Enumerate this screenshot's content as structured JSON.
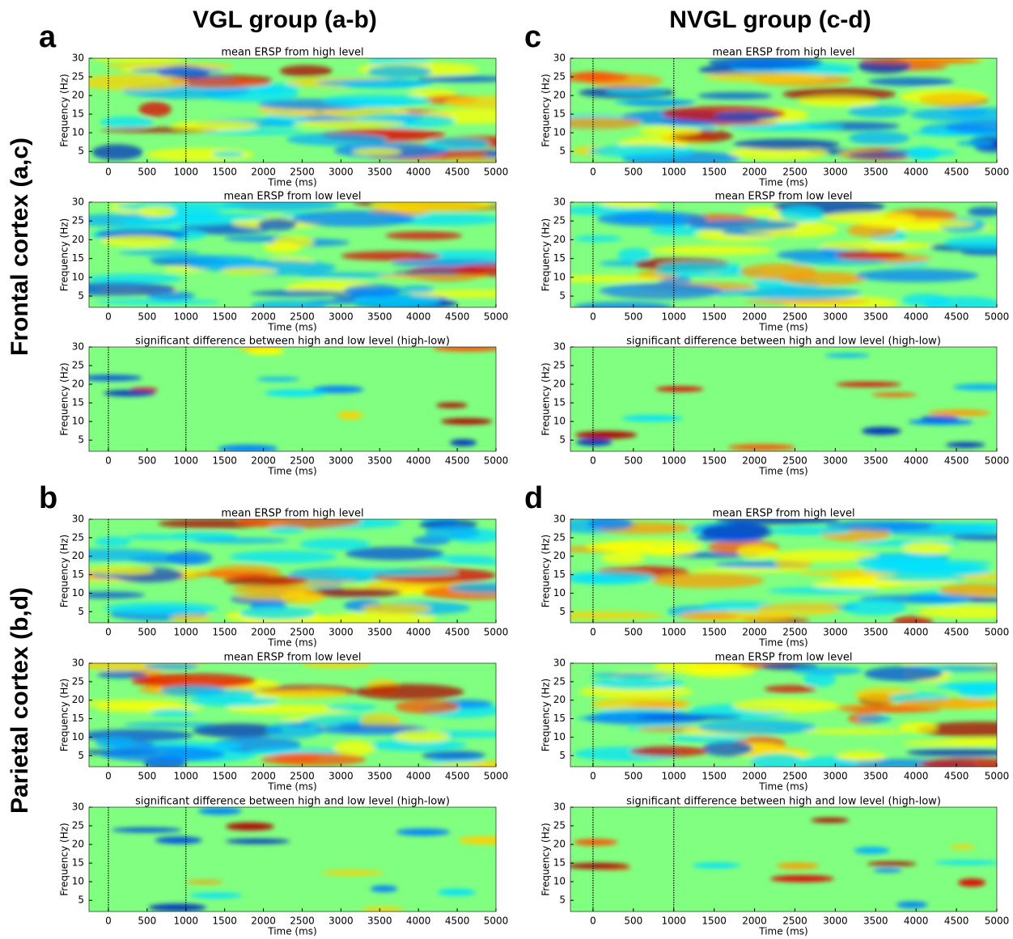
{
  "headers": {
    "left": "VGL group (a-b)",
    "right": "NVGL group (c-d)",
    "row1": "Frontal cortex (a,c)",
    "row2": "Parietal cortex (b,d)",
    "letters": [
      "a",
      "b",
      "c",
      "d"
    ]
  },
  "chart_data": [
    {
      "type": "heatmap",
      "title": "mean ERSP from high level",
      "xlabel": "Time (ms)",
      "ylabel": "Frequency (Hz)",
      "xlim": [
        -250,
        5000
      ],
      "ylim": [
        2,
        30
      ],
      "xticks": [
        0,
        500,
        1000,
        1500,
        2000,
        2500,
        3000,
        3500,
        4000,
        4500,
        5000
      ],
      "yticks": [
        5,
        10,
        15,
        20,
        25,
        30
      ],
      "markers": [
        0,
        1000
      ]
    },
    {
      "type": "heatmap",
      "title": "mean ERSP from low level",
      "xlabel": "Time (ms)",
      "ylabel": "Frequency (Hz)",
      "xlim": [
        -250,
        5000
      ],
      "ylim": [
        2,
        30
      ],
      "xticks": [
        0,
        500,
        1000,
        1500,
        2000,
        2500,
        3000,
        3500,
        4000,
        4500,
        5000
      ],
      "yticks": [
        5,
        10,
        15,
        20,
        25,
        30
      ],
      "markers": [
        0,
        1000
      ]
    },
    {
      "type": "heatmap",
      "title": "significant difference between high and low level (high-low)",
      "xlabel": "Time (ms)",
      "ylabel": "Frequency (Hz)",
      "xlim": [
        -250,
        5000
      ],
      "ylim": [
        2,
        30
      ],
      "xticks": [
        0,
        500,
        1000,
        1500,
        2000,
        2500,
        3000,
        3500,
        4000,
        4500,
        5000
      ],
      "yticks": [
        5,
        10,
        15,
        20,
        25,
        30
      ],
      "markers": [
        0,
        1000
      ]
    },
    {
      "type": "heatmap",
      "title": "mean ERSP from high level",
      "xlabel": "Time (ms)",
      "ylabel": "Frequency (Hz)",
      "xlim": [
        -250,
        5000
      ],
      "ylim": [
        2,
        30
      ],
      "xticks": [
        0,
        500,
        1000,
        1500,
        2000,
        2500,
        3000,
        3500,
        4000,
        4500,
        5000
      ],
      "yticks": [
        5,
        10,
        15,
        20,
        25,
        30
      ],
      "markers": [
        0,
        1000
      ]
    },
    {
      "type": "heatmap",
      "title": "mean ERSP from low level",
      "xlabel": "Time (ms)",
      "ylabel": "Frequency (Hz)",
      "xlim": [
        -250,
        5000
      ],
      "ylim": [
        2,
        30
      ],
      "xticks": [
        0,
        500,
        1000,
        1500,
        2000,
        2500,
        3000,
        3500,
        4000,
        4500,
        5000
      ],
      "yticks": [
        5,
        10,
        15,
        20,
        25,
        30
      ],
      "markers": [
        0,
        1000
      ]
    },
    {
      "type": "heatmap",
      "title": "significant difference between high and low level (high-low)",
      "xlabel": "Time (ms)",
      "ylabel": "Frequency (Hz)",
      "xlim": [
        -250,
        5000
      ],
      "ylim": [
        2,
        30
      ],
      "xticks": [
        0,
        500,
        1000,
        1500,
        2000,
        2500,
        3000,
        3500,
        4000,
        4500,
        5000
      ],
      "yticks": [
        5,
        10,
        15,
        20,
        25,
        30
      ],
      "markers": [
        0,
        1000
      ]
    },
    {
      "type": "heatmap",
      "title": "mean ERSP from high level",
      "xlabel": "Time (ms)",
      "ylabel": "Frequency (Hz)",
      "xlim": [
        -280,
        5000
      ],
      "ylim": [
        2,
        30
      ],
      "xticks": [
        0,
        500,
        1000,
        1500,
        2000,
        2500,
        3000,
        3500,
        4000,
        4500,
        5000
      ],
      "yticks": [
        5,
        10,
        15,
        20,
        25,
        30
      ],
      "markers": [
        0,
        1000
      ]
    },
    {
      "type": "heatmap",
      "title": "mean ERSP from low level",
      "xlabel": "Time (ms)",
      "ylabel": "Frequency (Hz)",
      "xlim": [
        -280,
        5000
      ],
      "ylim": [
        2,
        30
      ],
      "xticks": [
        0,
        500,
        1000,
        1500,
        2000,
        2500,
        3000,
        3500,
        4000,
        4500,
        5000
      ],
      "yticks": [
        5,
        10,
        15,
        20,
        25,
        30
      ],
      "markers": [
        0,
        1000
      ]
    },
    {
      "type": "heatmap",
      "title": "significant difference between high and low level (high-low)",
      "xlabel": "Time (ms)",
      "ylabel": "Frequency (Hz)",
      "xlim": [
        -280,
        5000
      ],
      "ylim": [
        2,
        30
      ],
      "xticks": [
        0,
        500,
        1000,
        1500,
        2000,
        2500,
        3000,
        3500,
        4000,
        4500,
        5000
      ],
      "yticks": [
        5,
        10,
        15,
        20,
        25,
        30
      ],
      "markers": [
        0,
        1000
      ]
    },
    {
      "type": "heatmap",
      "title": "mean ERSP from high level",
      "xlabel": "Time (ms)",
      "ylabel": "Frequency (Hz)",
      "xlim": [
        -280,
        5000
      ],
      "ylim": [
        2,
        30
      ],
      "xticks": [
        0,
        500,
        1000,
        1500,
        2000,
        2500,
        3000,
        3500,
        4000,
        4500,
        5000
      ],
      "yticks": [
        5,
        10,
        15,
        20,
        25,
        30
      ],
      "markers": [
        0,
        1000
      ]
    },
    {
      "type": "heatmap",
      "title": "mean ERSP from low level",
      "xlabel": "Time (ms)",
      "ylabel": "Frequency (Hz)",
      "xlim": [
        -280,
        5000
      ],
      "ylim": [
        2,
        30
      ],
      "xticks": [
        0,
        500,
        1000,
        1500,
        2000,
        2500,
        3000,
        3500,
        4000,
        4500,
        5000
      ],
      "yticks": [
        5,
        10,
        15,
        20,
        25,
        30
      ],
      "markers": [
        0,
        1000
      ]
    },
    {
      "type": "heatmap",
      "title": "significant difference between high and low level (high-low)",
      "xlabel": "Time (ms)",
      "ylabel": "Frequency (Hz)",
      "xlim": [
        -280,
        5000
      ],
      "ylim": [
        2,
        30
      ],
      "xticks": [
        0,
        500,
        1000,
        1500,
        2000,
        2500,
        3000,
        3500,
        4000,
        4500,
        5000
      ],
      "yticks": [
        5,
        10,
        15,
        20,
        25,
        30
      ],
      "markers": [
        0,
        1000
      ]
    }
  ]
}
